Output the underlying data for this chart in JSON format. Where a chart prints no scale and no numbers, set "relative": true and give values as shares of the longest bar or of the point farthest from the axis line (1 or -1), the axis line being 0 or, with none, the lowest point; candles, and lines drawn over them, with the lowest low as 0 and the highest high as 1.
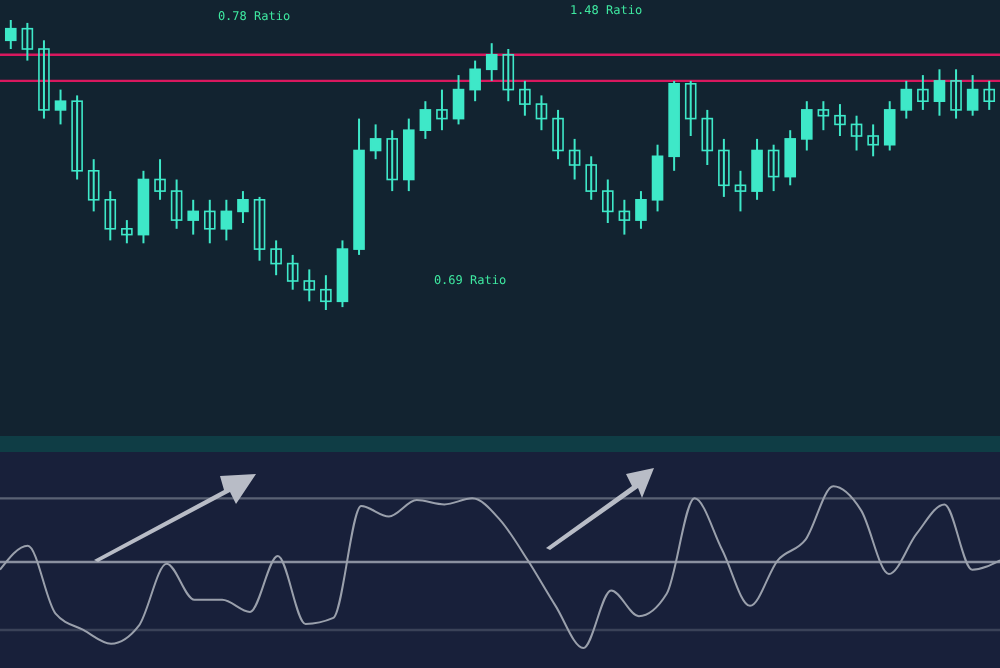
{
  "chart_data": [
    {
      "type": "candlestick",
      "relative": true,
      "color": "#3ee8c8",
      "categories": [
        null,
        null,
        null,
        null,
        null,
        null,
        null,
        null,
        null,
        null,
        null,
        null,
        null,
        null,
        null,
        null,
        null,
        null,
        null,
        null,
        null,
        null,
        null,
        null,
        null,
        null,
        null,
        null,
        null,
        null,
        null,
        null,
        null,
        null,
        null,
        null,
        null,
        null,
        null,
        null,
        null,
        null,
        null,
        null,
        null,
        null,
        null,
        null,
        null,
        null,
        null,
        null,
        null,
        null,
        null,
        null,
        null,
        null,
        null,
        null
      ],
      "ohlc": [
        [
          0.93,
          1.0,
          0.9,
          0.97
        ],
        [
          0.97,
          0.99,
          0.86,
          0.9
        ],
        [
          0.9,
          0.93,
          0.66,
          0.69
        ],
        [
          0.69,
          0.76,
          0.64,
          0.72
        ],
        [
          0.72,
          0.74,
          0.45,
          0.48
        ],
        [
          0.48,
          0.52,
          0.34,
          0.38
        ],
        [
          0.38,
          0.41,
          0.24,
          0.28
        ],
        [
          0.28,
          0.31,
          0.23,
          0.26
        ],
        [
          0.26,
          0.48,
          0.23,
          0.45
        ],
        [
          0.45,
          0.52,
          0.38,
          0.41
        ],
        [
          0.41,
          0.45,
          0.28,
          0.31
        ],
        [
          0.31,
          0.38,
          0.26,
          0.34
        ],
        [
          0.34,
          0.38,
          0.23,
          0.28
        ],
        [
          0.28,
          0.38,
          0.24,
          0.34
        ],
        [
          0.34,
          0.41,
          0.3,
          0.38
        ],
        [
          0.38,
          0.39,
          0.17,
          0.21
        ],
        [
          0.21,
          0.24,
          0.12,
          0.16
        ],
        [
          0.16,
          0.19,
          0.07,
          0.1
        ],
        [
          0.1,
          0.14,
          0.03,
          0.07
        ],
        [
          0.07,
          0.12,
          0,
          0.03
        ],
        [
          0.03,
          0.24,
          0.01,
          0.21
        ],
        [
          0.21,
          0.66,
          0.19,
          0.55
        ],
        [
          0.55,
          0.64,
          0.52,
          0.59
        ],
        [
          0.59,
          0.62,
          0.41,
          0.45
        ],
        [
          0.45,
          0.66,
          0.41,
          0.62
        ],
        [
          0.62,
          0.72,
          0.59,
          0.69
        ],
        [
          0.69,
          0.76,
          0.62,
          0.66
        ],
        [
          0.66,
          0.81,
          0.64,
          0.76
        ],
        [
          0.76,
          0.86,
          0.72,
          0.83
        ],
        [
          0.83,
          0.92,
          0.79,
          0.88
        ],
        [
          0.88,
          0.9,
          0.72,
          0.76
        ],
        [
          0.76,
          0.79,
          0.67,
          0.71
        ],
        [
          0.71,
          0.74,
          0.62,
          0.66
        ],
        [
          0.66,
          0.69,
          0.52,
          0.55
        ],
        [
          0.55,
          0.59,
          0.45,
          0.5
        ],
        [
          0.5,
          0.53,
          0.38,
          0.41
        ],
        [
          0.41,
          0.45,
          0.3,
          0.34
        ],
        [
          0.34,
          0.38,
          0.26,
          0.31
        ],
        [
          0.31,
          0.41,
          0.28,
          0.38
        ],
        [
          0.38,
          0.57,
          0.34,
          0.53
        ],
        [
          0.53,
          0.79,
          0.48,
          0.78
        ],
        [
          0.78,
          0.79,
          0.6,
          0.66
        ],
        [
          0.66,
          0.69,
          0.5,
          0.55
        ],
        [
          0.55,
          0.59,
          0.39,
          0.43
        ],
        [
          0.43,
          0.48,
          0.34,
          0.41
        ],
        [
          0.41,
          0.59,
          0.38,
          0.55
        ],
        [
          0.55,
          0.57,
          0.41,
          0.46
        ],
        [
          0.46,
          0.62,
          0.43,
          0.59
        ],
        [
          0.59,
          0.72,
          0.55,
          0.69
        ],
        [
          0.69,
          0.72,
          0.62,
          0.67
        ],
        [
          0.67,
          0.71,
          0.6,
          0.64
        ],
        [
          0.64,
          0.67,
          0.55,
          0.6
        ],
        [
          0.6,
          0.64,
          0.53,
          0.57
        ],
        [
          0.57,
          0.72,
          0.55,
          0.69
        ],
        [
          0.69,
          0.79,
          0.66,
          0.76
        ],
        [
          0.76,
          0.81,
          0.69,
          0.72
        ],
        [
          0.72,
          0.83,
          0.67,
          0.79
        ],
        [
          0.79,
          0.83,
          0.66,
          0.69
        ],
        [
          0.69,
          0.81,
          0.67,
          0.76
        ],
        [
          0.76,
          0.79,
          0.69,
          0.72
        ]
      ],
      "ref_lines": [
        {
          "axis": "y",
          "value": 0.88,
          "color": "#d8185e"
        },
        {
          "axis": "y",
          "value": 0.79,
          "color": "#d8185e"
        }
      ],
      "annotations": [
        "0.78 Ratio",
        "1.48 Ratio",
        "0.69 Ratio"
      ]
    },
    {
      "type": "line",
      "relative": true,
      "marker": "none",
      "line_style": "solid",
      "categories": [
        null,
        null,
        null,
        null,
        null,
        null,
        null,
        null,
        null,
        null,
        null,
        null,
        null,
        null,
        null,
        null,
        null,
        null,
        null,
        null,
        null,
        null,
        null,
        null,
        null,
        null,
        null,
        null,
        null,
        null,
        null,
        null,
        null,
        null,
        null,
        null,
        null
      ],
      "series": [
        {
          "color": "#9aa0ac",
          "values": [
            -0.09,
            0.19,
            -0.6,
            -0.79,
            -0.95,
            -0.74,
            -0.02,
            -0.44,
            -0.44,
            -0.58,
            0.07,
            -0.72,
            -0.65,
            0.65,
            0.53,
            0.72,
            0.67,
            0.74,
            0.49,
            0.02,
            -0.51,
            -1,
            -0.33,
            -0.63,
            -0.37,
            0.74,
            0.14,
            -0.51,
            0.02,
            0.26,
            0.88,
            0.6,
            -0.14,
            0.33,
            0.67,
            -0.09,
            0.02
          ]
        }
      ],
      "ref_lines": [
        {
          "axis": "y",
          "value": 0.74,
          "color": "#5a6274"
        },
        {
          "axis": "y",
          "value": -0.79,
          "color": "#3a4258"
        }
      ]
    }
  ]
}
